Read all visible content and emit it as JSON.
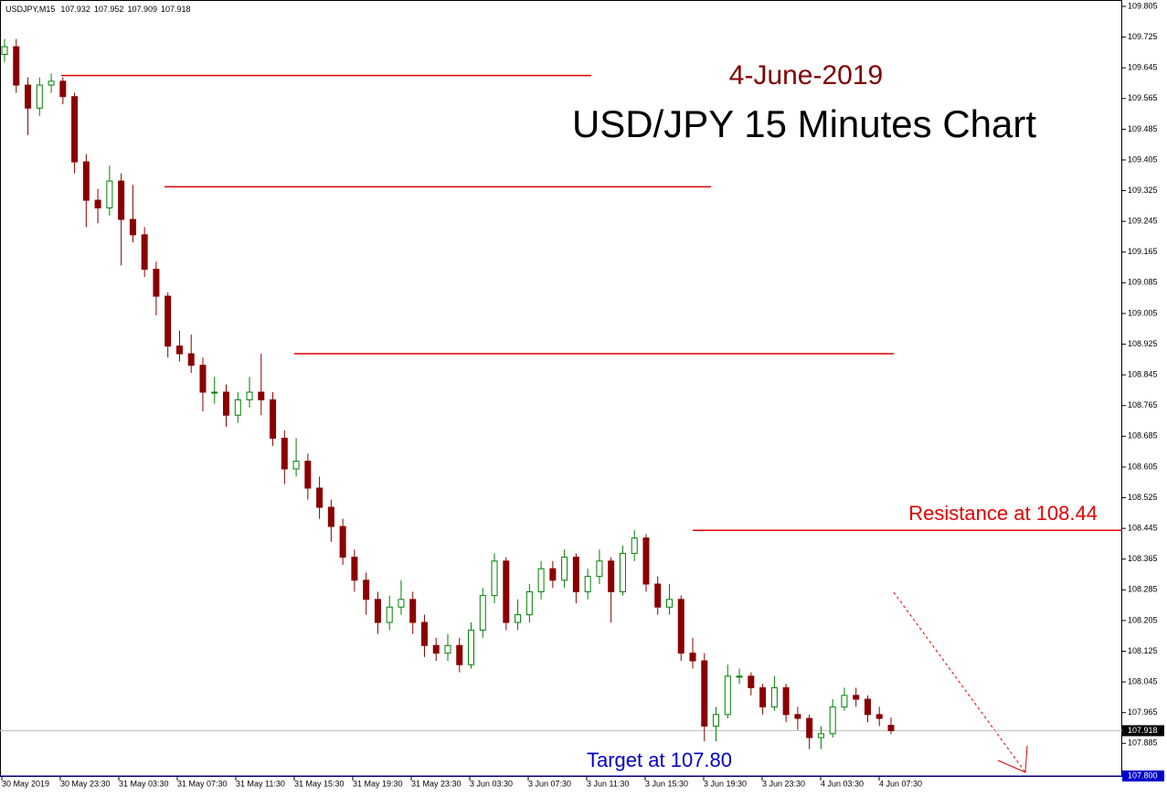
{
  "chart_data": {
    "type": "candlestick",
    "symbol": "USDJPY,M15",
    "subtitle": "4-June-2019",
    "title": "USD/JPY 15 Minutes Chart",
    "annotations": [
      "Resistance at 108.44",
      "Target at 107.80"
    ],
    "levels": [
      109.625,
      109.335,
      108.9,
      108.44
    ],
    "current_price": 107.918,
    "target": {
      "value": 107.8,
      "label": "107.800"
    },
    "up_color": "#008000",
    "down_color": "#8b0000",
    "level_color": "#e00000",
    "target_color": "#0000cc",
    "open": [
      109.68,
      109.7,
      109.6,
      109.54,
      109.6,
      109.61,
      109.57,
      109.4,
      109.3,
      109.28,
      109.35,
      109.25,
      109.21,
      109.12,
      109.05,
      108.92,
      108.9,
      108.87,
      108.8,
      108.8,
      108.74,
      108.78,
      108.8,
      108.78,
      108.68,
      108.6,
      108.62,
      108.55,
      108.5,
      108.45,
      108.37,
      108.31,
      108.26,
      108.2,
      108.24,
      108.26,
      108.2,
      108.14,
      108.12,
      108.14,
      108.09,
      108.18,
      108.27,
      108.36,
      108.2,
      108.22,
      108.28,
      108.34,
      108.31,
      108.37,
      108.28,
      108.32,
      108.36,
      108.28,
      108.38,
      108.42,
      108.3,
      108.24,
      108.26,
      108.12,
      108.1,
      107.93,
      107.96,
      108.06,
      108.06,
      108.03,
      107.98,
      108.03,
      107.96,
      107.95,
      107.9,
      107.91,
      107.98,
      108.01,
      108.0,
      107.96,
      107.932
    ],
    "high": [
      109.72,
      109.72,
      109.62,
      109.62,
      109.63,
      109.62,
      109.58,
      109.42,
      109.33,
      109.39,
      109.37,
      109.34,
      109.23,
      109.14,
      109.06,
      108.96,
      108.95,
      108.89,
      108.84,
      108.82,
      108.8,
      108.84,
      108.9,
      108.8,
      108.7,
      108.68,
      108.64,
      108.58,
      108.52,
      108.47,
      108.39,
      108.33,
      108.28,
      108.27,
      108.31,
      108.28,
      108.22,
      108.16,
      108.17,
      108.16,
      108.2,
      108.29,
      108.38,
      108.37,
      108.26,
      108.3,
      108.36,
      108.36,
      108.39,
      108.38,
      108.34,
      108.39,
      108.37,
      108.4,
      108.44,
      108.43,
      108.32,
      108.3,
      108.27,
      108.16,
      108.12,
      107.98,
      108.09,
      108.08,
      108.07,
      108.04,
      108.06,
      108.04,
      107.98,
      107.96,
      107.93,
      108.0,
      108.03,
      108.03,
      108.01,
      107.98,
      107.952
    ],
    "low": [
      109.66,
      109.58,
      109.47,
      109.52,
      109.58,
      109.55,
      109.37,
      109.23,
      109.24,
      109.26,
      109.13,
      109.19,
      109.1,
      109.0,
      108.89,
      108.88,
      108.85,
      108.75,
      108.77,
      108.71,
      108.72,
      108.76,
      108.74,
      108.66,
      108.56,
      108.58,
      108.52,
      108.47,
      108.41,
      108.35,
      108.28,
      108.22,
      108.17,
      108.18,
      108.22,
      108.17,
      108.11,
      108.1,
      108.1,
      108.07,
      108.08,
      108.16,
      108.25,
      108.18,
      108.18,
      108.2,
      108.26,
      108.29,
      108.29,
      108.25,
      108.26,
      108.3,
      108.2,
      108.27,
      108.36,
      108.28,
      108.22,
      108.22,
      108.1,
      108.08,
      107.89,
      107.89,
      107.95,
      108.04,
      108.01,
      107.96,
      107.97,
      107.94,
      107.92,
      107.87,
      107.87,
      107.9,
      107.97,
      107.98,
      107.94,
      107.93,
      107.909
    ],
    "close": [
      109.7,
      109.6,
      109.54,
      109.6,
      109.61,
      109.57,
      109.4,
      109.3,
      109.28,
      109.35,
      109.25,
      109.21,
      109.12,
      109.05,
      108.92,
      108.9,
      108.87,
      108.8,
      108.8,
      108.74,
      108.78,
      108.8,
      108.78,
      108.68,
      108.6,
      108.62,
      108.55,
      108.5,
      108.45,
      108.37,
      108.31,
      108.26,
      108.2,
      108.24,
      108.26,
      108.2,
      108.14,
      108.12,
      108.14,
      108.09,
      108.18,
      108.27,
      108.36,
      108.2,
      108.22,
      108.28,
      108.34,
      108.31,
      108.37,
      108.28,
      108.32,
      108.36,
      108.28,
      108.38,
      108.42,
      108.3,
      108.24,
      108.26,
      108.12,
      108.1,
      107.93,
      107.96,
      108.06,
      108.06,
      108.03,
      107.98,
      108.03,
      107.96,
      107.95,
      107.9,
      107.91,
      107.98,
      108.01,
      108.0,
      107.96,
      107.95,
      107.918
    ],
    "x_labels": [
      "30 May 2019",
      "30 May 23:30",
      "31 May 03:30",
      "31 May 07:30",
      "31 May 11:30",
      "31 May 15:30",
      "31 May 19:30",
      "31 May 23:30",
      "3 Jun 03:30",
      "3 Jun 07:30",
      "3 Jun 11:30",
      "3 Jun 15:30",
      "3 Jun 19:30",
      "3 Jun 23:30",
      "4 Jun 03:30",
      "4 Jun 07:30"
    ],
    "ylim": [
      107.8,
      109.805
    ],
    "yticks": [
      109.805,
      109.725,
      109.645,
      109.565,
      109.485,
      109.405,
      109.325,
      109.245,
      109.165,
      109.085,
      109.005,
      108.925,
      108.845,
      108.765,
      108.685,
      108.605,
      108.525,
      108.445,
      108.365,
      108.285,
      108.205,
      108.125,
      108.045,
      107.965,
      107.885
    ]
  }
}
